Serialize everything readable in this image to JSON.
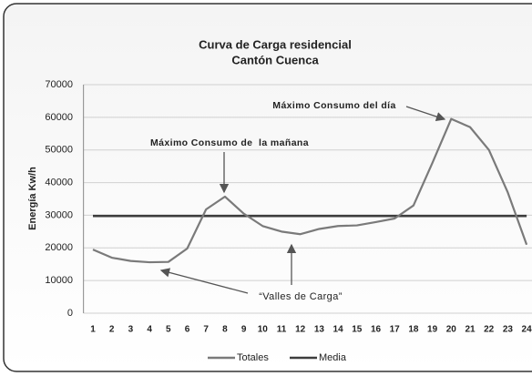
{
  "chart_data": {
    "type": "line",
    "title": [
      "Curva de Carga residencial",
      "Cantón Cuenca"
    ],
    "y_label": "Energía Kw/h",
    "categories": [
      "1",
      "2",
      "3",
      "4",
      "5",
      "6",
      "7",
      "8",
      "9",
      "10",
      "11",
      "12",
      "13",
      "14",
      "15",
      "16",
      "17",
      "18",
      "19",
      "20",
      "21",
      "22",
      "23",
      "24"
    ],
    "series": [
      {
        "name": "Totales",
        "color": "#7a7a7a",
        "values": [
          19500,
          17000,
          16000,
          15600,
          15700,
          19800,
          31800,
          35700,
          30500,
          26700,
          25000,
          24200,
          25800,
          26700,
          26900,
          27900,
          29000,
          33000,
          46000,
          59500,
          57000,
          50000,
          37000,
          21000
        ]
      },
      {
        "name": "Media",
        "color": "#3d3d3d",
        "values": [
          29800,
          29800,
          29800,
          29800,
          29800,
          29800,
          29800,
          29800,
          29800,
          29800,
          29800,
          29800,
          29800,
          29800,
          29800,
          29800,
          29800,
          29800,
          29800,
          29800,
          29800,
          29800,
          29800,
          29800
        ]
      }
    ],
    "ylim": [
      0,
      70000
    ],
    "yticks": [
      0,
      10000,
      20000,
      30000,
      40000,
      50000,
      60000,
      70000
    ],
    "grid": true,
    "annotations": [
      "Máximo Consumo del día",
      "Máximo Consumo de  la mañana",
      "“Valles de Carga”"
    ],
    "legend": "bottom"
  }
}
